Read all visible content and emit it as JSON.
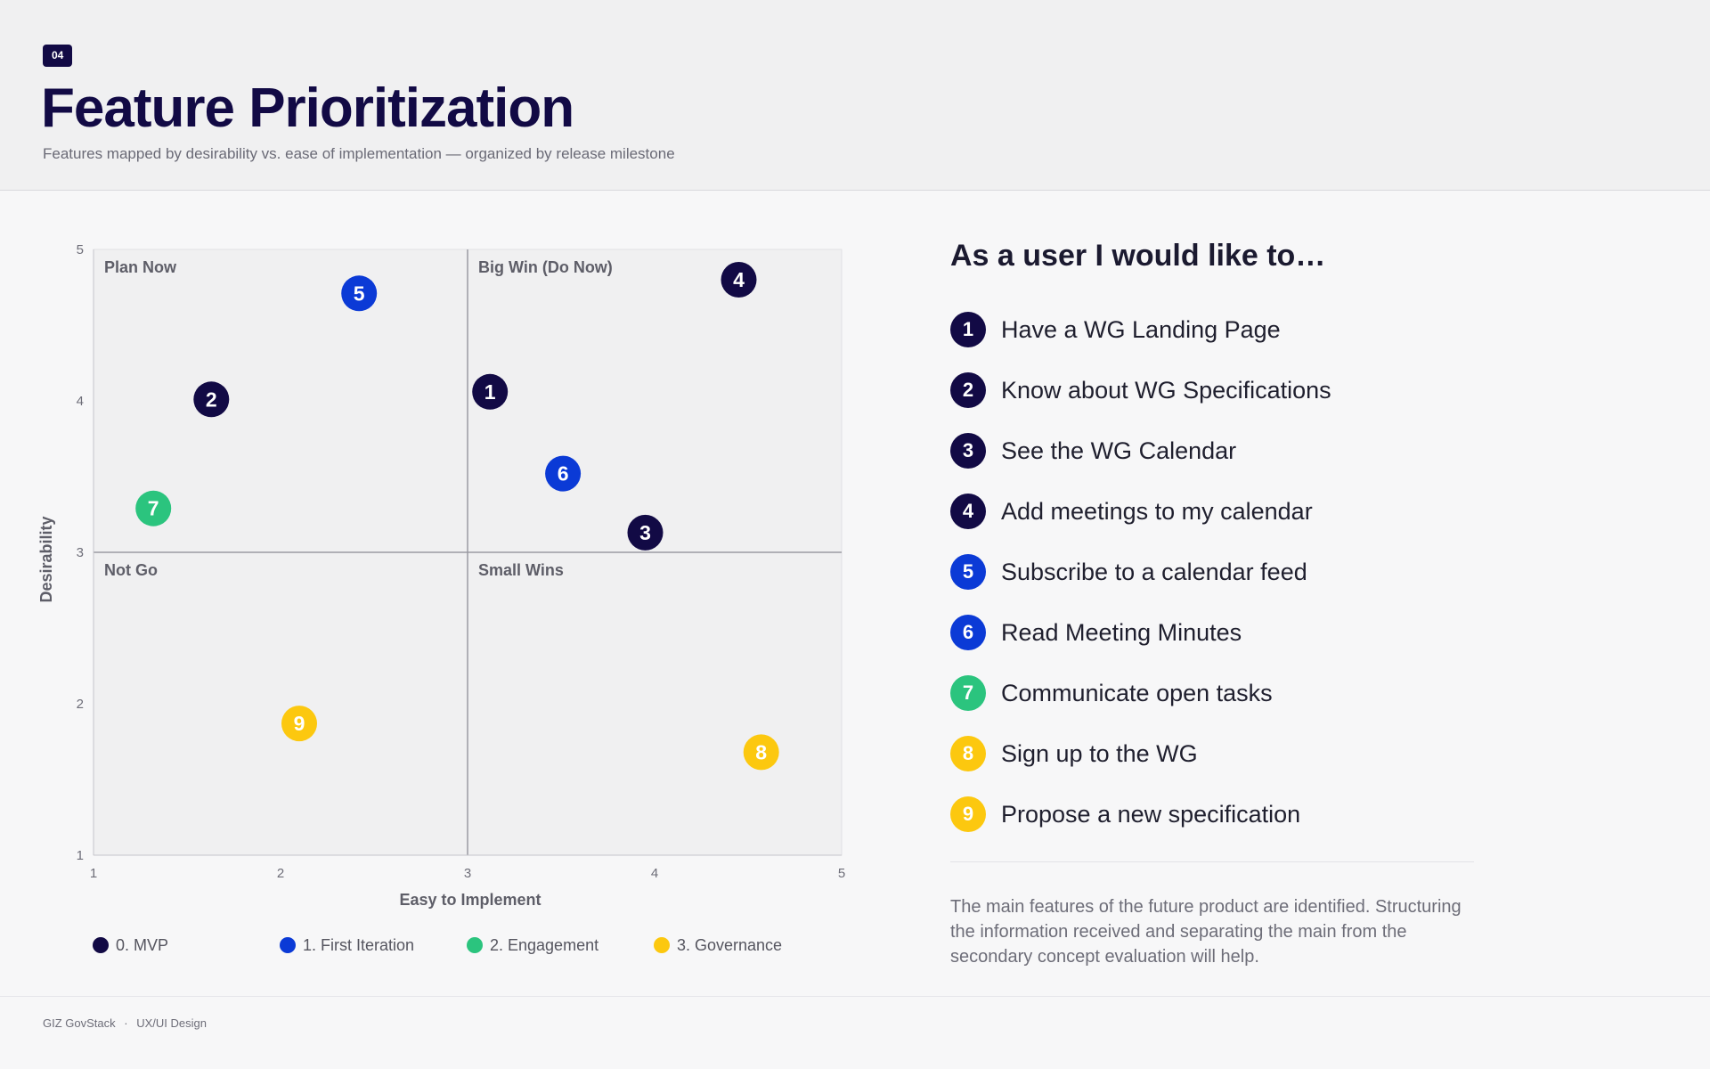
{
  "header": {
    "badge": "04",
    "title": "Feature Prioritization",
    "subtitle": "Features mapped by desirability vs. ease of implementation — organized by release milestone"
  },
  "colors": {
    "mvp": "#120a45",
    "first_iteration": "#0b3ad6",
    "engagement": "#2bc47e",
    "governance": "#fcc80f"
  },
  "chart_data": {
    "type": "scatter",
    "xlabel": "Easy to Implement",
    "ylabel": "Desirability",
    "xlim": [
      1,
      5
    ],
    "ylim": [
      1,
      5
    ],
    "x_ticks": [
      "1",
      "2",
      "3",
      "4",
      "5"
    ],
    "y_ticks": [
      "1",
      "2",
      "3",
      "4",
      "5"
    ],
    "grid": false,
    "quadrant_dividers": {
      "x": 3,
      "y": 3
    },
    "quadrants": [
      {
        "label": "Plan Now",
        "position": "top-left"
      },
      {
        "label": "Big Win (Do Now)",
        "position": "top-right"
      },
      {
        "label": "Not Go",
        "position": "bottom-left"
      },
      {
        "label": "Small Wins",
        "position": "bottom-right"
      }
    ],
    "legend_position": "bottom",
    "series": [
      {
        "name": "0. MVP",
        "color": "#120a45",
        "points": [
          {
            "label": "1",
            "x": 3.12,
            "y": 4.06
          },
          {
            "label": "2",
            "x": 1.63,
            "y": 4.01
          },
          {
            "label": "3",
            "x": 3.95,
            "y": 3.13
          },
          {
            "label": "4",
            "x": 4.45,
            "y": 4.8
          }
        ]
      },
      {
        "name": "1. First Iteration",
        "color": "#0b3ad6",
        "points": [
          {
            "label": "5",
            "x": 2.42,
            "y": 4.71
          },
          {
            "label": "6",
            "x": 3.51,
            "y": 3.52
          }
        ]
      },
      {
        "name": "2. Engagement",
        "color": "#2bc47e",
        "points": [
          {
            "label": "7",
            "x": 1.32,
            "y": 3.29
          }
        ]
      },
      {
        "name": "3. Governance",
        "color": "#fcc80f",
        "points": [
          {
            "label": "8",
            "x": 4.57,
            "y": 1.68
          },
          {
            "label": "9",
            "x": 2.1,
            "y": 1.87
          }
        ]
      }
    ]
  },
  "features": {
    "heading": "As a user I would like to…",
    "items": [
      {
        "num": "1",
        "text": "Have a WG Landing Page",
        "color": "#120a45"
      },
      {
        "num": "2",
        "text": "Know about WG Specifications",
        "color": "#120a45"
      },
      {
        "num": "3",
        "text": "See the WG Calendar",
        "color": "#120a45"
      },
      {
        "num": "4",
        "text": "Add meetings to my calendar",
        "color": "#120a45"
      },
      {
        "num": "5",
        "text": "Subscribe to a calendar feed",
        "color": "#0b3ad6"
      },
      {
        "num": "6",
        "text": "Read Meeting Minutes",
        "color": "#0b3ad6"
      },
      {
        "num": "7",
        "text": "Communicate open tasks",
        "color": "#2bc47e"
      },
      {
        "num": "8",
        "text": "Sign up to the WG",
        "color": "#fcc80f"
      },
      {
        "num": "9",
        "text": "Propose a new specification",
        "color": "#fcc80f"
      }
    ]
  },
  "description": "The main features of the future product are identified. Structuring the information received and separating the main from the secondary concept evaluation will help.",
  "footer": {
    "org": "GIZ GovStack",
    "separator": "·",
    "section": "UX/UI Design"
  }
}
